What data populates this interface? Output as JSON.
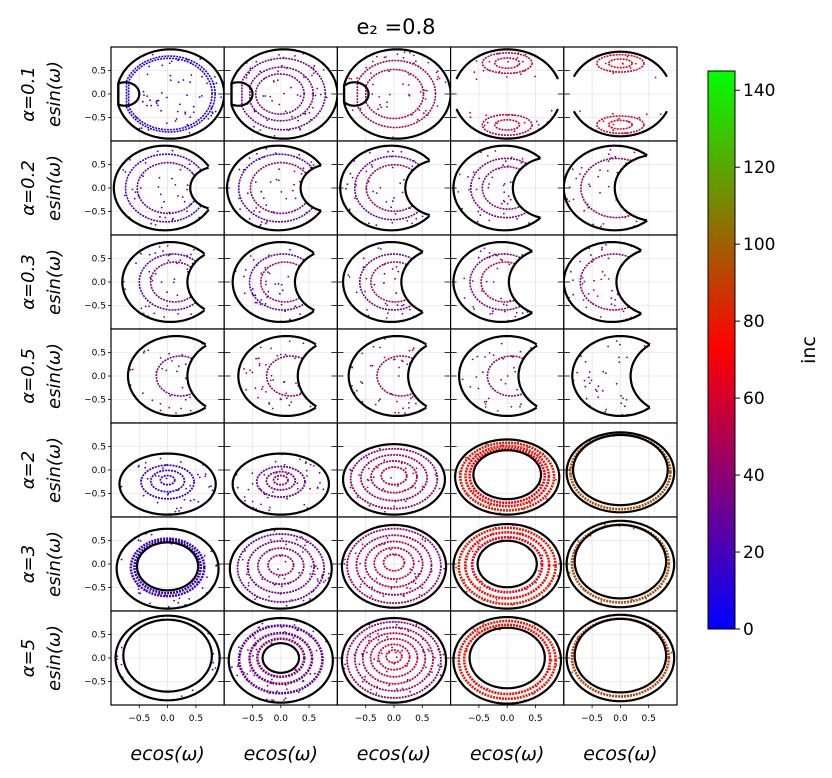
{
  "chart_data": {
    "type": "scatter",
    "layout": "grid of 7 rows by 5 columns of phase-space panels",
    "title": "e₂ =0.8",
    "xlabel": "ecos(ω)",
    "ylabel": "esin(ω)",
    "row_labels": [
      "α=0.1",
      "α=0.2",
      "α=0.3",
      "α=0.5",
      "α=2",
      "α=3",
      "α=5"
    ],
    "x_ticks": [
      "−0.5",
      "0.0",
      "0.5"
    ],
    "x_tick_values": [
      -0.5,
      0.0,
      0.5
    ],
    "y_ticks": [
      "0.5",
      "0.0",
      "−0.5"
    ],
    "y_tick_values": [
      0.5,
      0.0,
      -0.5
    ],
    "xlim": [
      -1,
      1
    ],
    "ylim": [
      -1,
      1
    ],
    "grid": true,
    "colorbar": {
      "label": "inc",
      "range": [
        0,
        145
      ],
      "ticks": [
        "0",
        "20",
        "40",
        "60",
        "80",
        "100",
        "120",
        "140"
      ],
      "tick_values": [
        0,
        20,
        40,
        60,
        80,
        100,
        120,
        140
      ],
      "colors": [
        "#0000ff",
        "#ff0000",
        "#00ff00"
      ]
    },
    "panels": [
      [
        {
          "shape": "crescent",
          "cx": 0.05,
          "r": 0.95,
          "hole_cx": -0.75,
          "hole_r": 0.25,
          "curves": [
            {
              "t": 0.85,
              "inc": 8
            },
            {
              "t": 0.8,
              "inc": 10
            }
          ]
        },
        {
          "shape": "crescent",
          "cx": 0.05,
          "r": 0.95,
          "hole_cx": -0.75,
          "hole_r": 0.25,
          "curves": [
            {
              "t": 0.8,
              "inc": 32
            },
            {
              "t": 0.6,
              "inc": 35
            },
            {
              "t": 0.45,
              "inc": 35
            }
          ]
        },
        {
          "shape": "crescent",
          "cx": 0.05,
          "r": 0.95,
          "hole_cx": -0.7,
          "hole_r": 0.25,
          "curves": [
            {
              "t": 0.75,
              "inc": 45
            },
            {
              "t": 0.55,
              "inc": 50
            }
          ]
        },
        {
          "shape": "lobes",
          "cx": 0.0,
          "r": 0.95,
          "inner": 0.3,
          "curves": [
            {
              "t": 0.6,
              "inc": 55
            },
            {
              "t": 0.3,
              "inc": 60
            }
          ]
        },
        {
          "shape": "lobes",
          "cx": 0.0,
          "r": 0.9,
          "inner": 0.35,
          "curves": [
            {
              "t": 0.6,
              "inc": 60
            },
            {
              "t": 0.3,
              "inc": 65
            }
          ]
        }
      ],
      [
        {
          "shape": "crescent",
          "cx": -0.05,
          "r": 0.9,
          "hole_cx": 0.85,
          "hole_r": 0.45,
          "curves": [
            {
              "t": 0.8,
              "inc": 20
            },
            {
              "t": 0.6,
              "inc": 30
            }
          ]
        },
        {
          "shape": "crescent",
          "cx": -0.05,
          "r": 0.9,
          "hole_cx": 0.85,
          "hole_r": 0.5,
          "curves": [
            {
              "t": 0.8,
              "inc": 25
            },
            {
              "t": 0.6,
              "inc": 40
            }
          ]
        },
        {
          "shape": "crescent",
          "cx": -0.05,
          "r": 0.9,
          "hole_cx": 0.8,
          "hole_r": 0.6,
          "curves": [
            {
              "t": 0.75,
              "inc": 30
            },
            {
              "t": 0.55,
              "inc": 45
            }
          ]
        },
        {
          "shape": "crescent",
          "cx": -0.05,
          "r": 0.9,
          "hole_cx": 0.75,
          "hole_r": 0.65,
          "curves": [
            {
              "t": 0.7,
              "inc": 35
            },
            {
              "t": 0.5,
              "inc": 40
            }
          ]
        },
        {
          "shape": "crescent",
          "cx": -0.1,
          "r": 0.9,
          "hole_cx": 0.6,
          "hole_r": 0.7,
          "curves": [
            {
              "t": 0.7,
              "inc": 40
            }
          ]
        }
      ],
      [
        {
          "shape": "crescent",
          "cx": 0.05,
          "r": 0.85,
          "hole_cx": 1.05,
          "hole_r": 0.7,
          "curves": [
            {
              "t": 0.7,
              "inc": 25
            },
            {
              "t": 0.5,
              "inc": 40
            }
          ]
        },
        {
          "shape": "crescent",
          "cx": 0.0,
          "r": 0.85,
          "hole_cx": 0.95,
          "hole_r": 0.7,
          "curves": [
            {
              "t": 0.7,
              "inc": 28
            },
            {
              "t": 0.5,
              "inc": 45
            }
          ]
        },
        {
          "shape": "crescent",
          "cx": -0.05,
          "r": 0.85,
          "hole_cx": 0.85,
          "hole_r": 0.72,
          "curves": [
            {
              "t": 0.7,
              "inc": 30
            },
            {
              "t": 0.5,
              "inc": 50
            }
          ]
        },
        {
          "shape": "crescent",
          "cx": -0.1,
          "r": 0.85,
          "hole_cx": 0.75,
          "hole_r": 0.72,
          "curves": [
            {
              "t": 0.7,
              "inc": 35
            },
            {
              "t": 0.5,
              "inc": 55
            }
          ]
        },
        {
          "shape": "crescent",
          "cx": -0.15,
          "r": 0.85,
          "hole_cx": 0.65,
          "hole_r": 0.72,
          "curves": [
            {
              "t": 0.7,
              "inc": 40
            }
          ]
        }
      ],
      [
        {
          "shape": "crescent",
          "cx": 0.15,
          "r": 0.85,
          "hole_cx": 1.15,
          "hole_r": 0.8,
          "curves": [
            {
              "t": 0.5,
              "inc": 35
            }
          ]
        },
        {
          "shape": "crescent",
          "cx": 0.1,
          "r": 0.85,
          "hole_cx": 1.1,
          "hole_r": 0.8,
          "curves": [
            {
              "t": 0.5,
              "inc": 40
            }
          ]
        },
        {
          "shape": "crescent",
          "cx": 0.05,
          "r": 0.85,
          "hole_cx": 1.05,
          "hole_r": 0.8,
          "curves": [
            {
              "t": 0.5,
              "inc": 45
            }
          ]
        },
        {
          "shape": "crescent",
          "cx": 0.0,
          "r": 0.85,
          "hole_cx": 1.0,
          "hole_r": 0.8,
          "curves": [
            {
              "t": 0.5,
              "inc": 40
            }
          ]
        },
        {
          "shape": "crescent",
          "cx": 0.0,
          "r": 0.85,
          "hole_cx": 1.0,
          "hole_r": 0.82,
          "curves": []
        }
      ],
      [
        {
          "shape": "disk",
          "cx": 0.0,
          "cy": -0.3,
          "rx": 0.85,
          "ry": 0.65,
          "curves": [
            {
              "s": 0.55,
              "inc": 15
            },
            {
              "s": 0.35,
              "inc": 20
            },
            {
              "s": 0.15,
              "inc": 25
            }
          ]
        },
        {
          "shape": "disk",
          "cx": 0.0,
          "cy": -0.3,
          "rx": 0.85,
          "ry": 0.65,
          "curves": [
            {
              "s": 0.5,
              "inc": 30
            },
            {
              "s": 0.3,
              "inc": 35
            },
            {
              "s": 0.15,
              "inc": 40
            }
          ]
        },
        {
          "shape": "disk",
          "cx": 0.0,
          "cy": -0.2,
          "rx": 0.9,
          "ry": 0.75,
          "curves": [
            {
              "s": 0.85,
              "inc": 40
            },
            {
              "s": 0.65,
              "inc": 45
            },
            {
              "s": 0.45,
              "inc": 50
            },
            {
              "s": 0.25,
              "inc": 55
            }
          ]
        },
        {
          "shape": "ring",
          "cx": 0.0,
          "cy": -0.15,
          "rx": 0.92,
          "ry": 0.8,
          "hole": 0.65,
          "curves": [
            {
              "s": 0.9,
              "inc": 80
            },
            {
              "s": 0.8,
              "inc": 75
            },
            {
              "s": 0.72,
              "inc": 70
            }
          ]
        },
        {
          "shape": "ring",
          "cx": 0.0,
          "cy": -0.05,
          "rx": 0.95,
          "ry": 0.85,
          "hole": 0.88,
          "curves": [
            {
              "s": 0.93,
              "inc": 95
            }
          ]
        }
      ],
      [
        {
          "shape": "ring",
          "cx": 0.0,
          "cy": -0.1,
          "rx": 0.9,
          "ry": 0.85,
          "hole": 0.6,
          "curves": [
            {
              "s": 0.65,
              "inc": 15
            },
            {
              "s": 0.72,
              "inc": 20
            }
          ]
        },
        {
          "shape": "disk",
          "cx": 0.0,
          "cy": -0.1,
          "rx": 0.9,
          "ry": 0.85,
          "curves": [
            {
              "s": 0.85,
              "inc": 30
            },
            {
              "s": 0.65,
              "inc": 35
            },
            {
              "s": 0.45,
              "inc": 40
            },
            {
              "s": 0.25,
              "inc": 45
            }
          ]
        },
        {
          "shape": "disk",
          "cx": 0.0,
          "cy": -0.05,
          "rx": 0.92,
          "ry": 0.88,
          "curves": [
            {
              "s": 0.9,
              "inc": 40
            },
            {
              "s": 0.72,
              "inc": 45
            },
            {
              "s": 0.55,
              "inc": 50
            },
            {
              "s": 0.38,
              "inc": 55
            },
            {
              "s": 0.2,
              "inc": 60
            }
          ]
        },
        {
          "shape": "ring",
          "cx": 0.0,
          "cy": -0.05,
          "rx": 0.95,
          "ry": 0.9,
          "hole": 0.55,
          "curves": [
            {
              "s": 0.9,
              "inc": 80
            },
            {
              "s": 0.78,
              "inc": 75
            },
            {
              "s": 0.65,
              "inc": 65
            }
          ]
        },
        {
          "shape": "ring",
          "cx": 0.0,
          "cy": 0.0,
          "rx": 0.95,
          "ry": 0.92,
          "hole": 0.85,
          "curves": [
            {
              "s": 0.9,
              "inc": 95
            }
          ]
        }
      ],
      [
        {
          "shape": "ring",
          "cx": 0.0,
          "cy": 0.0,
          "rx": 0.92,
          "ry": 0.9,
          "hole": 0.85,
          "curves": []
        },
        {
          "shape": "ring",
          "cx": 0.0,
          "cy": -0.05,
          "rx": 0.92,
          "ry": 0.9,
          "hole": 0.35,
          "curves": [
            {
              "s": 0.8,
              "inc": 30
            },
            {
              "s": 0.6,
              "inc": 35
            },
            {
              "s": 0.45,
              "inc": 40
            }
          ]
        },
        {
          "shape": "disk",
          "cx": 0.0,
          "cy": -0.05,
          "rx": 0.92,
          "ry": 0.9,
          "curves": [
            {
              "s": 0.9,
              "inc": 40
            },
            {
              "s": 0.75,
              "inc": 45
            },
            {
              "s": 0.6,
              "inc": 50
            },
            {
              "s": 0.45,
              "inc": 55
            },
            {
              "s": 0.3,
              "inc": 60
            },
            {
              "s": 0.15,
              "inc": 65
            }
          ]
        },
        {
          "shape": "ring",
          "cx": 0.0,
          "cy": -0.05,
          "rx": 0.95,
          "ry": 0.92,
          "hole": 0.7,
          "curves": [
            {
              "s": 0.9,
              "inc": 80
            },
            {
              "s": 0.8,
              "inc": 75
            }
          ]
        },
        {
          "shape": "ring",
          "cx": 0.0,
          "cy": 0.0,
          "rx": 0.95,
          "ry": 0.92,
          "hole": 0.85,
          "curves": [
            {
              "s": 0.9,
              "inc": 90
            }
          ]
        }
      ]
    ]
  }
}
